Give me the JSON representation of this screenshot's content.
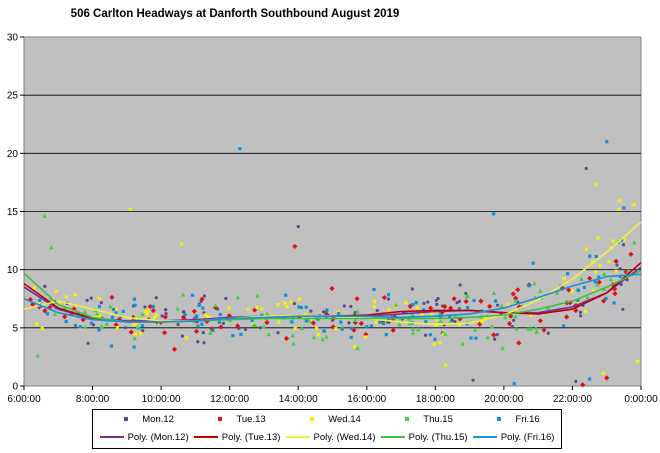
{
  "chart_data": {
    "type": "scatter",
    "title": "506 Carlton Headways at Danforth Southbound August 2019",
    "xlabel": "",
    "ylabel": "",
    "x_ticks": [
      "6:00:00",
      "8:00:00",
      "10:00:00",
      "12:00:00",
      "14:00:00",
      "16:00:00",
      "18:00:00",
      "20:00:00",
      "22:00:00",
      "0:00:00"
    ],
    "y_ticks": [
      "0",
      "5",
      "10",
      "15",
      "20",
      "25",
      "30"
    ],
    "xlim_hours": [
      6,
      24
    ],
    "ylim": [
      0,
      30
    ],
    "grid": "horizontal",
    "legend_position": "bottom",
    "series": [
      {
        "name": "Mon.12",
        "color": "#5b4a8c",
        "marker": "dot",
        "trend_name": "Poly. (Mon.12)",
        "trend_color": "#7030a0",
        "trend": [
          [
            6,
            8.5
          ],
          [
            7,
            6.6
          ],
          [
            8,
            5.8
          ],
          [
            9,
            5.6
          ],
          [
            10,
            5.6
          ],
          [
            11,
            5.7
          ],
          [
            12,
            5.9
          ],
          [
            13,
            6.0
          ],
          [
            14,
            6.1
          ],
          [
            15,
            6.0
          ],
          [
            16,
            6.0
          ],
          [
            17,
            6.2
          ],
          [
            18,
            6.4
          ],
          [
            19,
            6.5
          ],
          [
            20,
            6.3
          ],
          [
            21,
            6.3
          ],
          [
            22,
            6.8
          ],
          [
            23,
            8.0
          ],
          [
            24,
            10.2
          ]
        ]
      },
      {
        "name": "Tue.13",
        "color": "#e0101a",
        "marker": "diamond",
        "trend_name": "Poly. (Tue.13)",
        "trend_color": "#c00000",
        "trend": [
          [
            6,
            8.8
          ],
          [
            7,
            6.7
          ],
          [
            8,
            5.8
          ],
          [
            9,
            5.5
          ],
          [
            10,
            5.5
          ],
          [
            11,
            5.6
          ],
          [
            12,
            5.8
          ],
          [
            13,
            5.9
          ],
          [
            14,
            6.0
          ],
          [
            15,
            6.0
          ],
          [
            16,
            6.1
          ],
          [
            17,
            6.4
          ],
          [
            18,
            6.5
          ],
          [
            19,
            6.5
          ],
          [
            20,
            6.3
          ],
          [
            21,
            6.2
          ],
          [
            22,
            6.6
          ],
          [
            23,
            8.0
          ],
          [
            24,
            10.6
          ]
        ]
      },
      {
        "name": "Wed.14",
        "color": "#f5f200",
        "marker": "square",
        "trend_name": "Poly. (Wed.14)",
        "trend_color": "#f0f040",
        "trend": [
          [
            6,
            6.6
          ],
          [
            7,
            7.3
          ],
          [
            8,
            6.6
          ],
          [
            9,
            5.9
          ],
          [
            10,
            5.6
          ],
          [
            11,
            5.6
          ],
          [
            12,
            5.8
          ],
          [
            13,
            6.0
          ],
          [
            14,
            6.1
          ],
          [
            15,
            6.0
          ],
          [
            16,
            5.8
          ],
          [
            17,
            5.5
          ],
          [
            18,
            5.3
          ],
          [
            19,
            5.4
          ],
          [
            20,
            6.1
          ],
          [
            21,
            7.4
          ],
          [
            22,
            9.2
          ],
          [
            23,
            11.5
          ],
          [
            24,
            14.1
          ]
        ]
      },
      {
        "name": "Thu.15",
        "color": "#40d040",
        "marker": "triangle",
        "trend_name": "Poly. (Thu.15)",
        "trend_color": "#40c040",
        "trend": [
          [
            6,
            9.7
          ],
          [
            7,
            7.0
          ],
          [
            8,
            5.9
          ],
          [
            9,
            5.5
          ],
          [
            10,
            5.5
          ],
          [
            11,
            5.6
          ],
          [
            12,
            5.7
          ],
          [
            13,
            5.8
          ],
          [
            14,
            5.8
          ],
          [
            15,
            5.8
          ],
          [
            16,
            5.8
          ],
          [
            17,
            5.8
          ],
          [
            18,
            5.8
          ],
          [
            19,
            5.9
          ],
          [
            20,
            6.1
          ],
          [
            21,
            6.6
          ],
          [
            22,
            7.3
          ],
          [
            23,
            8.5
          ],
          [
            24,
            9.9
          ]
        ]
      },
      {
        "name": "Fri.16",
        "color": "#1090d8",
        "marker": "square",
        "trend_name": "Poly. (Fri.16)",
        "trend_color": "#1e90d6",
        "trend": [
          [
            6,
            7.5
          ],
          [
            7,
            6.3
          ],
          [
            8,
            5.7
          ],
          [
            9,
            5.5
          ],
          [
            10,
            5.5
          ],
          [
            11,
            5.6
          ],
          [
            12,
            5.8
          ],
          [
            13,
            5.9
          ],
          [
            14,
            6.0
          ],
          [
            15,
            6.0
          ],
          [
            16,
            6.0
          ],
          [
            17,
            5.9
          ],
          [
            18,
            6.0
          ],
          [
            19,
            6.2
          ],
          [
            20,
            6.7
          ],
          [
            21,
            7.6
          ],
          [
            22,
            8.6
          ],
          [
            23,
            9.4
          ],
          [
            24,
            9.6
          ]
        ]
      }
    ],
    "outliers": [
      {
        "series": 4,
        "x": 12.3,
        "y": 20.4
      },
      {
        "series": 4,
        "x": 23.0,
        "y": 21.0
      },
      {
        "series": 0,
        "x": 22.4,
        "y": 18.7
      },
      {
        "series": 2,
        "x": 22.7,
        "y": 17.3
      },
      {
        "series": 2,
        "x": 9.1,
        "y": 15.2
      },
      {
        "series": 2,
        "x": 23.8,
        "y": 15.6
      },
      {
        "series": 4,
        "x": 23.5,
        "y": 15.3
      },
      {
        "series": 3,
        "x": 6.6,
        "y": 14.6
      },
      {
        "series": 0,
        "x": 14.0,
        "y": 13.7
      },
      {
        "series": 2,
        "x": 10.6,
        "y": 12.2
      },
      {
        "series": 4,
        "x": 19.7,
        "y": 14.8
      },
      {
        "series": 3,
        "x": 6.8,
        "y": 11.9
      },
      {
        "series": 1,
        "x": 13.9,
        "y": 12.0
      },
      {
        "series": 0,
        "x": 22.1,
        "y": 0.4
      },
      {
        "series": 1,
        "x": 22.3,
        "y": 0.1
      },
      {
        "series": 4,
        "x": 22.5,
        "y": 0.6
      },
      {
        "series": 2,
        "x": 22.9,
        "y": 1.1
      },
      {
        "series": 1,
        "x": 23.0,
        "y": 0.7
      },
      {
        "series": 2,
        "x": 18.3,
        "y": 1.8
      },
      {
        "series": 0,
        "x": 19.1,
        "y": 0.5
      },
      {
        "series": 3,
        "x": 6.4,
        "y": 2.6
      },
      {
        "series": 2,
        "x": 23.9,
        "y": 2.1
      },
      {
        "series": 4,
        "x": 20.3,
        "y": 0.2
      },
      {
        "series": 0,
        "x": 23.3,
        "y": 10.4
      }
    ]
  }
}
